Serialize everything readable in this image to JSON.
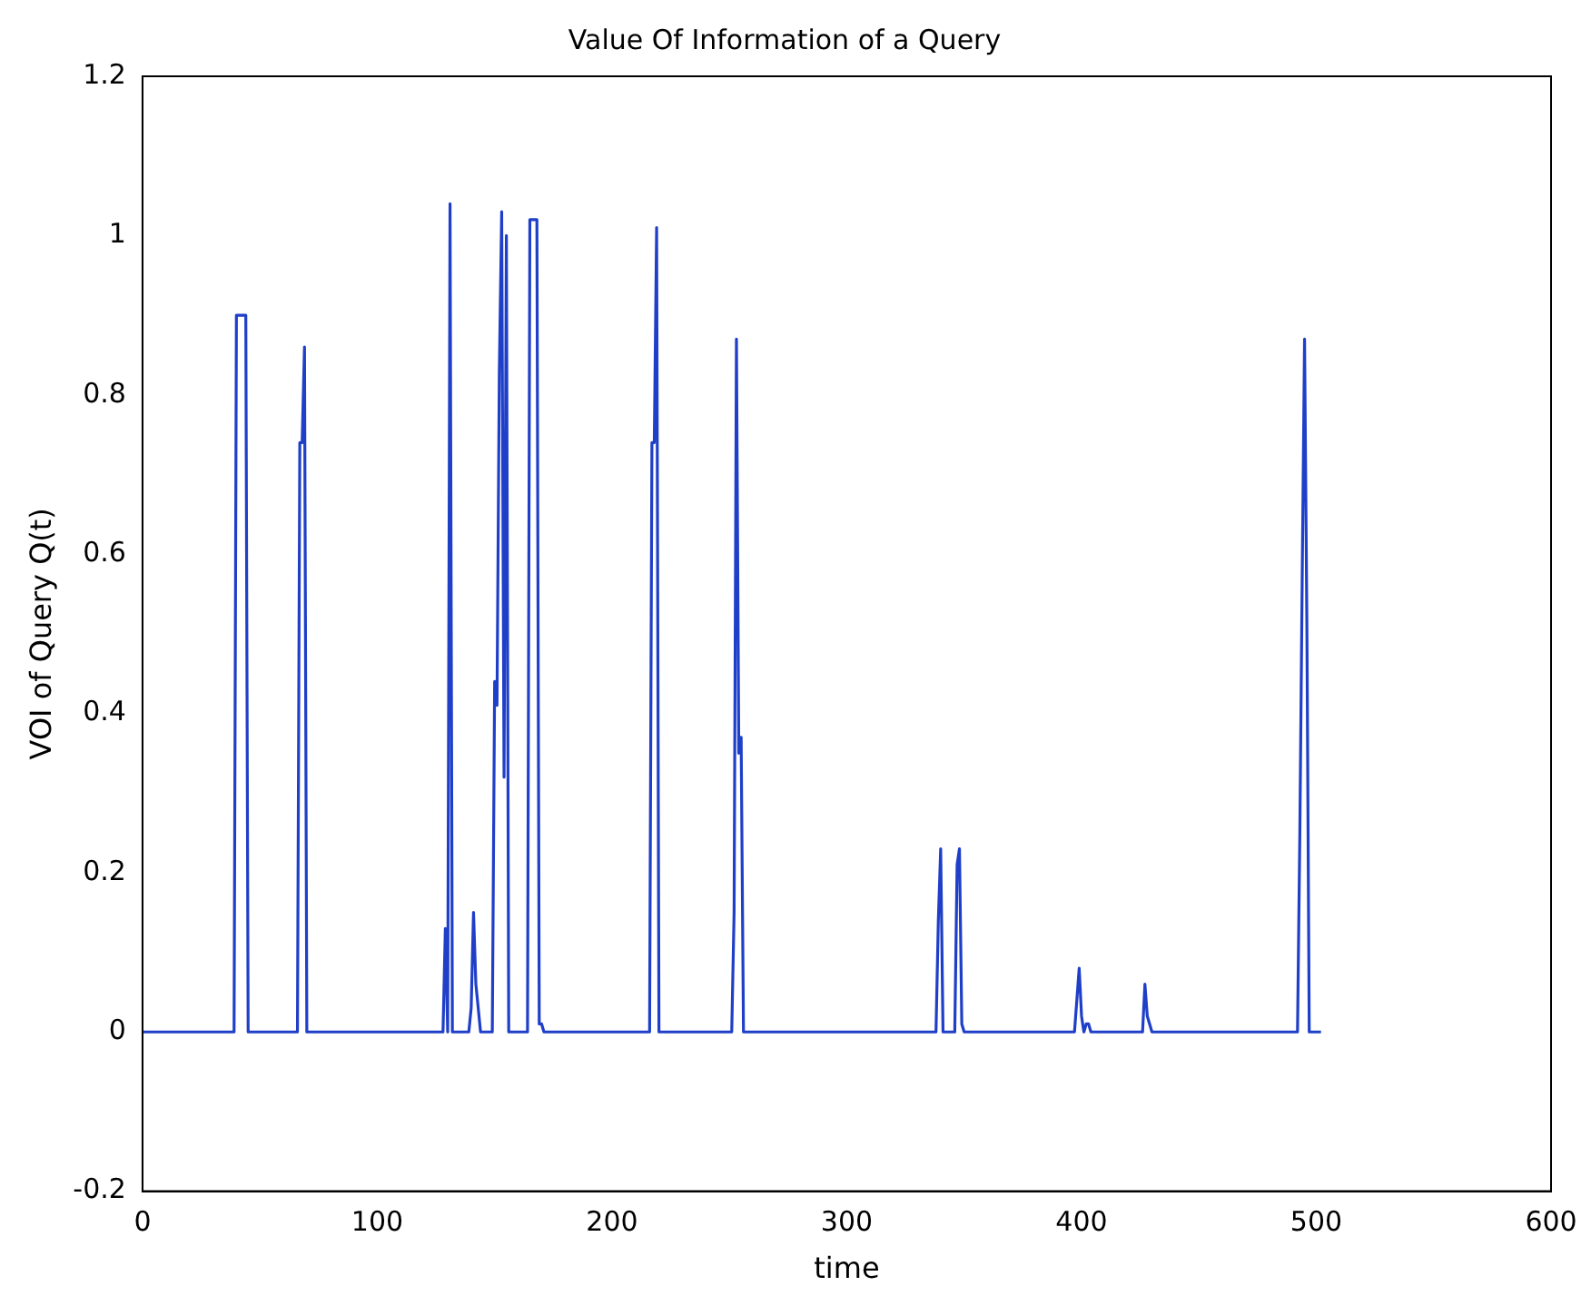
{
  "chart_data": {
    "type": "line",
    "title": "Value Of Information of a Query",
    "xlabel": "time",
    "ylabel": "VOI of Query Q(t)",
    "xlim": [
      0,
      600
    ],
    "ylim": [
      -0.2,
      1.2
    ],
    "xticks": [
      0,
      100,
      200,
      300,
      400,
      500,
      600
    ],
    "yticks": [
      -0.2,
      0,
      0.2,
      0.4,
      0.6,
      0.8,
      1,
      1.2
    ],
    "grid": false,
    "legend": false,
    "marker": "none",
    "line_style": "solid",
    "series": [
      {
        "color": "#1f3fc8",
        "x": [
          0,
          39,
          40,
          41,
          43,
          44,
          45,
          66,
          67,
          68,
          69,
          70,
          71,
          128,
          129,
          130,
          131,
          132,
          133,
          139,
          140,
          141,
          142,
          143,
          144,
          149,
          150,
          151,
          152,
          153,
          154,
          155,
          156,
          164,
          165,
          168,
          169,
          170,
          171,
          216,
          217,
          218,
          219,
          220,
          251,
          252,
          253,
          254,
          255,
          256,
          338,
          339,
          340,
          341,
          346,
          347,
          348,
          349,
          350,
          397,
          398,
          399,
          400,
          401,
          402,
          403,
          404,
          426,
          427,
          428,
          429,
          430,
          492,
          493,
          494,
          495,
          496,
          497,
          502
        ],
        "values": [
          0,
          0,
          0.9,
          0.9,
          0.9,
          0.9,
          0,
          0,
          0.74,
          0.74,
          0.86,
          0,
          0,
          0,
          0.13,
          0,
          1.04,
          0,
          0,
          0,
          0.03,
          0.15,
          0.06,
          0.03,
          0,
          0,
          0.44,
          0.41,
          0.83,
          1.03,
          0.32,
          1,
          0,
          0,
          1.02,
          1.02,
          0.01,
          0.01,
          0,
          0,
          0.74,
          0.74,
          1.01,
          0,
          0,
          0.15,
          0.87,
          0.35,
          0.37,
          0,
          0,
          0.14,
          0.23,
          0,
          0,
          0.21,
          0.23,
          0.01,
          0,
          0,
          0.04,
          0.08,
          0.02,
          0,
          0.01,
          0.01,
          0,
          0,
          0.06,
          0.02,
          0.01,
          0,
          0,
          0.25,
          0.57,
          0.87,
          0.51,
          0,
          0
        ]
      }
    ]
  }
}
